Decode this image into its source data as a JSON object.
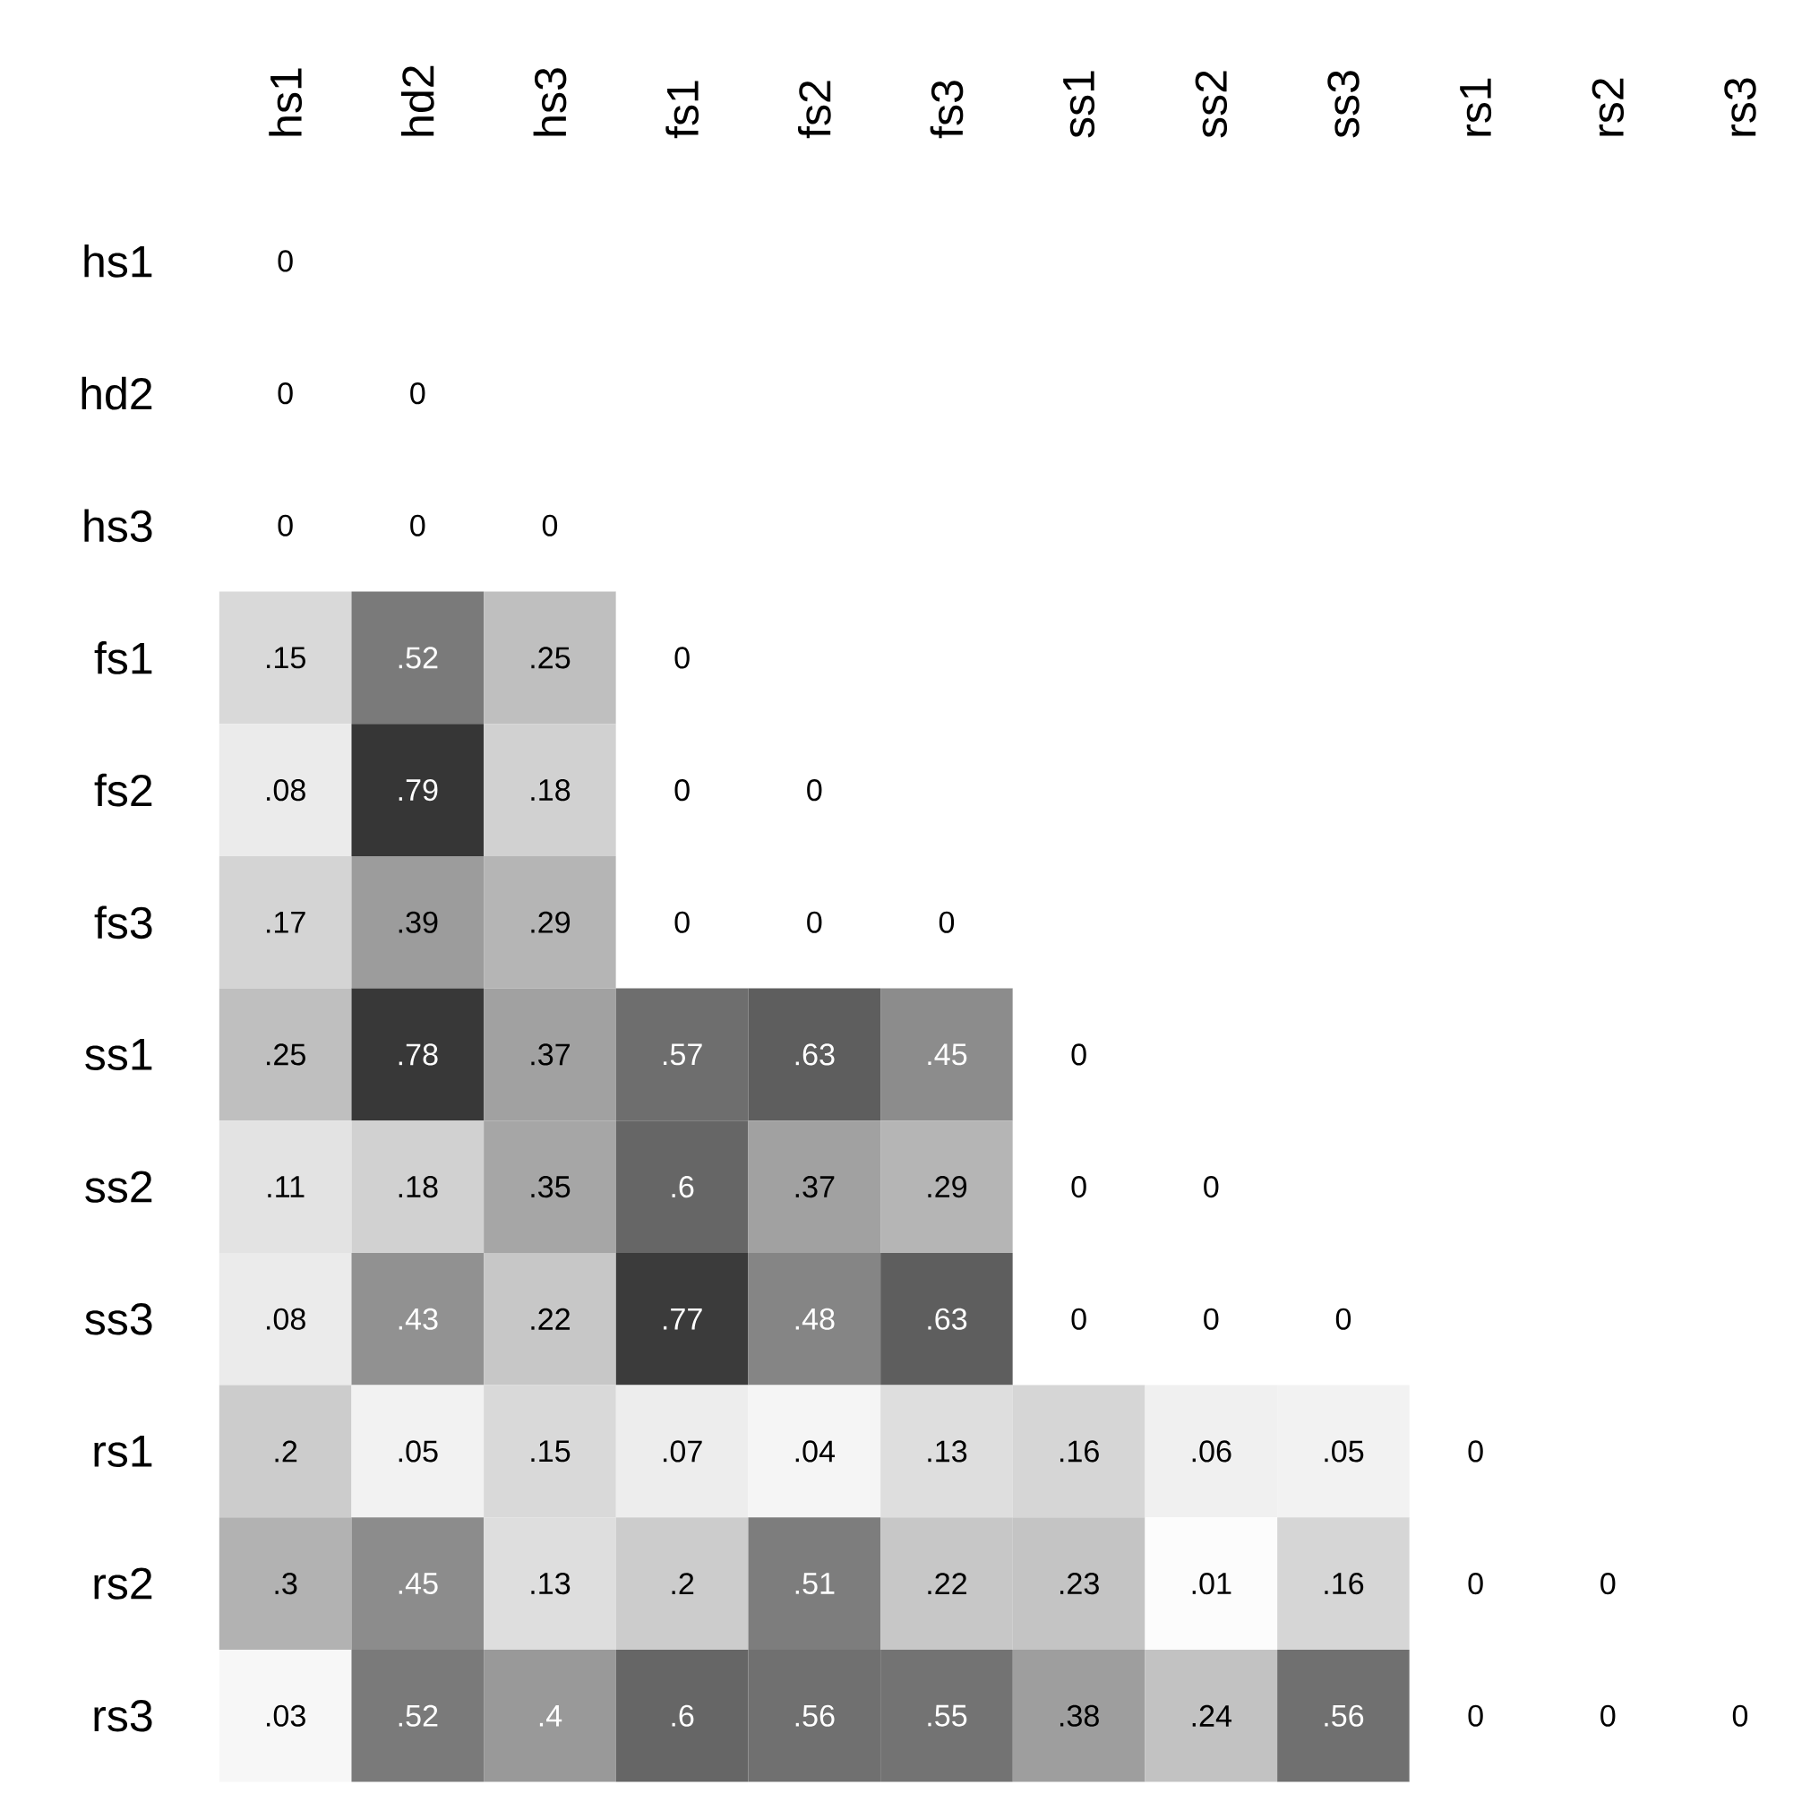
{
  "chart_data": {
    "type": "heatmap",
    "categories": [
      "hs1",
      "hd2",
      "hs3",
      "fs1",
      "fs2",
      "fs3",
      "ss1",
      "ss2",
      "ss3",
      "rs1",
      "rs2",
      "rs3"
    ],
    "y_categories": [
      "hs1",
      "hd2",
      "hs3",
      "fs1",
      "fs2",
      "fs3",
      "ss1",
      "ss2",
      "ss3",
      "rs1",
      "rs2",
      "rs3"
    ],
    "cells": [
      [
        0,
        null,
        null,
        null,
        null,
        null,
        null,
        null,
        null,
        null,
        null,
        null
      ],
      [
        0,
        0,
        null,
        null,
        null,
        null,
        null,
        null,
        null,
        null,
        null,
        null
      ],
      [
        0,
        0,
        0,
        null,
        null,
        null,
        null,
        null,
        null,
        null,
        null,
        null
      ],
      [
        0.15,
        0.52,
        0.25,
        0,
        null,
        null,
        null,
        null,
        null,
        null,
        null,
        null
      ],
      [
        0.08,
        0.79,
        0.18,
        0,
        0,
        null,
        null,
        null,
        null,
        null,
        null,
        null
      ],
      [
        0.17,
        0.39,
        0.29,
        0,
        0,
        0,
        null,
        null,
        null,
        null,
        null,
        null
      ],
      [
        0.25,
        0.78,
        0.37,
        0.57,
        0.63,
        0.45,
        0,
        null,
        null,
        null,
        null,
        null
      ],
      [
        0.11,
        0.18,
        0.35,
        0.6,
        0.37,
        0.29,
        0,
        0,
        null,
        null,
        null,
        null
      ],
      [
        0.08,
        0.43,
        0.22,
        0.77,
        0.48,
        0.63,
        0,
        0,
        0,
        null,
        null,
        null
      ],
      [
        0.2,
        0.05,
        0.15,
        0.07,
        0.04,
        0.13,
        0.16,
        0.06,
        0.05,
        0,
        null,
        null
      ],
      [
        0.3,
        0.45,
        0.13,
        0.2,
        0.51,
        0.22,
        0.23,
        0.01,
        0.16,
        0,
        0,
        null
      ],
      [
        0.03,
        0.52,
        0.4,
        0.6,
        0.56,
        0.55,
        0.38,
        0.24,
        0.56,
        0,
        0,
        0
      ]
    ],
    "cell_labels": [
      [
        "0",
        null,
        null,
        null,
        null,
        null,
        null,
        null,
        null,
        null,
        null,
        null
      ],
      [
        "0",
        "0",
        null,
        null,
        null,
        null,
        null,
        null,
        null,
        null,
        null,
        null
      ],
      [
        "0",
        "0",
        "0",
        null,
        null,
        null,
        null,
        null,
        null,
        null,
        null,
        null
      ],
      [
        ".15",
        ".52",
        ".25",
        "0",
        null,
        null,
        null,
        null,
        null,
        null,
        null,
        null
      ],
      [
        ".08",
        ".79",
        ".18",
        "0",
        "0",
        null,
        null,
        null,
        null,
        null,
        null,
        null
      ],
      [
        ".17",
        ".39",
        ".29",
        "0",
        "0",
        "0",
        null,
        null,
        null,
        null,
        null,
        null
      ],
      [
        ".25",
        ".78",
        ".37",
        ".57",
        ".63",
        ".45",
        "0",
        null,
        null,
        null,
        null,
        null
      ],
      [
        ".11",
        ".18",
        ".35",
        ".6",
        ".37",
        ".29",
        "0",
        "0",
        null,
        null,
        null,
        null
      ],
      [
        ".08",
        ".43",
        ".22",
        ".77",
        ".48",
        ".63",
        "0",
        "0",
        "0",
        null,
        null,
        null
      ],
      [
        ".2",
        ".05",
        ".15",
        ".07",
        ".04",
        ".13",
        ".16",
        ".06",
        ".05",
        "0",
        null,
        null
      ],
      [
        ".3",
        ".45",
        ".13",
        ".2",
        ".51",
        ".22",
        ".23",
        ".01",
        ".16",
        "0",
        "0",
        null
      ],
      [
        ".03",
        ".52",
        ".4",
        ".6",
        ".56",
        ".55",
        ".38",
        ".24",
        ".56",
        "0",
        "0",
        "0"
      ]
    ]
  }
}
